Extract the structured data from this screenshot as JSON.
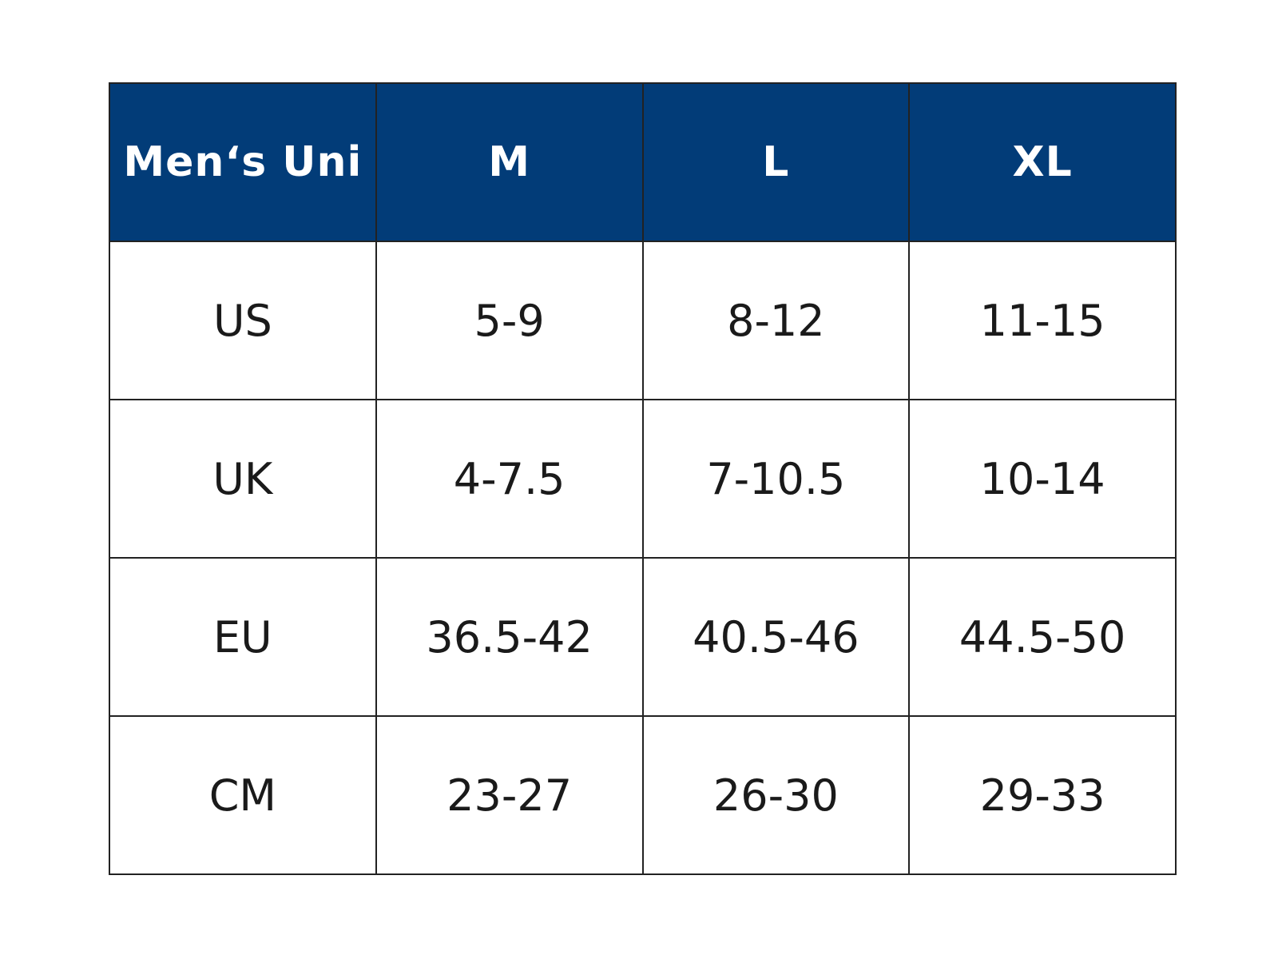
{
  "table": {
    "header": [
      "Men‘s Uni",
      "M",
      "L",
      "XL"
    ],
    "rows": [
      [
        "US",
        "5-9",
        "8-12",
        "11-15"
      ],
      [
        "UK",
        "4-7.5",
        "7-10.5",
        "10-14"
      ],
      [
        "EU",
        "36.5-42",
        "40.5-46",
        "44.5-50"
      ],
      [
        "CM",
        "23-27",
        "26-30",
        "29-33"
      ]
    ]
  }
}
